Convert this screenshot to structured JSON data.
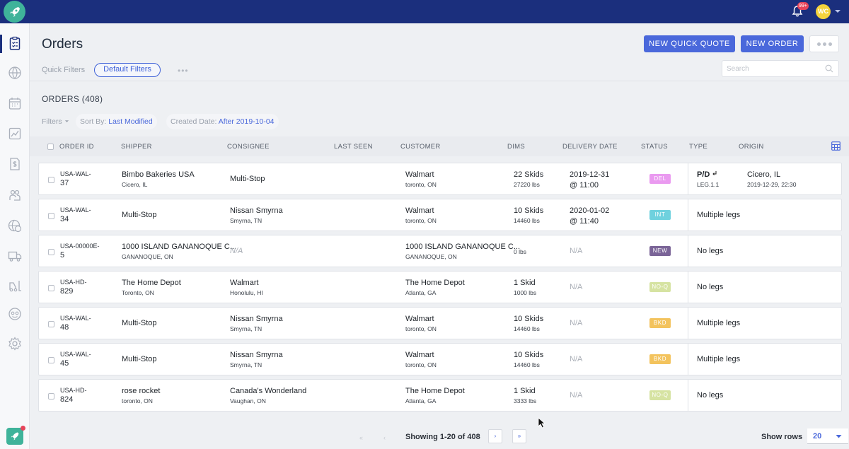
{
  "topbar": {
    "notif_count": "99+",
    "user_initials": "WC"
  },
  "header": {
    "title": "Orders",
    "quick_filters_label": "Quick Filters",
    "default_filters": "Default Filters",
    "qf_more": "•••",
    "new_quick_quote": "NEW QUICK QUOTE",
    "new_order": "NEW ORDER",
    "search_placeholder": "Search"
  },
  "orders": {
    "title": "ORDERS (408)",
    "filters_label": "Filters",
    "sort_label": "Sort By:",
    "sort_value": "Last Modified",
    "created_label": "Created Date:",
    "created_value": "After 2019-10-04"
  },
  "columns": [
    "ORDER ID",
    "SHIPPER",
    "CONSIGNEE",
    "LAST SEEN",
    "CUSTOMER",
    "DIMS",
    "DELIVERY DATE",
    "STATUS",
    "TYPE",
    "ORIGIN"
  ],
  "rows": [
    {
      "id1": "USA-WAL-",
      "id2": "37",
      "shipper": "Bimbo Bakeries USA",
      "shipper_sub": "Cicero, IL",
      "consignee": "Multi-Stop",
      "consignee_sub": "",
      "customer": "Walmart",
      "customer_sub": "toronto, ON",
      "dims": "22 Skids",
      "dims_sub": "27220 lbs",
      "delivery1": "2019-12-31",
      "delivery2": "@ 11:00",
      "status": "DEL",
      "status_color": "#ea9af0",
      "type": "P/D",
      "type_sub": "LEG.1.1",
      "origin": "Cicero, IL",
      "origin_sub": "2019-12-29, 22:30"
    },
    {
      "id1": "USA-WAL-",
      "id2": "34",
      "shipper": "Multi-Stop",
      "shipper_sub": "",
      "consignee": "Nissan Smyrna",
      "consignee_sub": "Smyrna, TN",
      "customer": "Walmart",
      "customer_sub": "toronto, ON",
      "dims": "10 Skids",
      "dims_sub": "14460 lbs",
      "delivery1": "2020-01-02",
      "delivery2": "@ 11:40",
      "status": "INT",
      "status_color": "#6fd1de",
      "type": "Multiple legs",
      "type_sub": "",
      "origin": "",
      "origin_sub": ""
    },
    {
      "id1": "USA-00000E-",
      "id2": "5",
      "shipper": "1000 ISLAND GANANOQUE C...",
      "shipper_sub": "GANANOQUE, ON",
      "consignee": "N/A",
      "consignee_sub": "",
      "customer": "1000 ISLAND GANANOQUE C...",
      "customer_sub": "GANANOQUE, ON",
      "dims": "",
      "dims_sub": "0 lbs",
      "delivery1": "N/A",
      "delivery2": "",
      "status": "NEW",
      "status_color": "#7a6497",
      "type": "No legs",
      "type_sub": "",
      "origin": "",
      "origin_sub": ""
    },
    {
      "id1": "USA-HD-",
      "id2": "829",
      "shipper": "The Home Depot",
      "shipper_sub": "Toronto, ON",
      "consignee": "Walmart",
      "consignee_sub": "Honolulu, HI",
      "customer": "The Home Depot",
      "customer_sub": "Atlanta, GA",
      "dims": "1 Skid",
      "dims_sub": "1000 lbs",
      "delivery1": "N/A",
      "delivery2": "",
      "status": "NO-Q",
      "status_color": "#d6e3a2",
      "type": "No legs",
      "type_sub": "",
      "origin": "",
      "origin_sub": ""
    },
    {
      "id1": "USA-WAL-",
      "id2": "48",
      "shipper": "Multi-Stop",
      "shipper_sub": "",
      "consignee": "Nissan Smyrna",
      "consignee_sub": "Smyrna, TN",
      "customer": "Walmart",
      "customer_sub": "toronto, ON",
      "dims": "10 Skids",
      "dims_sub": "14460 lbs",
      "delivery1": "N/A",
      "delivery2": "",
      "status": "BKD",
      "status_color": "#f3c35d",
      "type": "Multiple legs",
      "type_sub": "",
      "origin": "",
      "origin_sub": ""
    },
    {
      "id1": "USA-WAL-",
      "id2": "45",
      "shipper": "Multi-Stop",
      "shipper_sub": "",
      "consignee": "Nissan Smyrna",
      "consignee_sub": "Smyrna, TN",
      "customer": "Walmart",
      "customer_sub": "toronto, ON",
      "dims": "10 Skids",
      "dims_sub": "14460 lbs",
      "delivery1": "N/A",
      "delivery2": "",
      "status": "BKD",
      "status_color": "#f3c35d",
      "type": "Multiple legs",
      "type_sub": "",
      "origin": "",
      "origin_sub": ""
    },
    {
      "id1": "USA-HD-",
      "id2": "824",
      "shipper": "rose rocket",
      "shipper_sub": "toronto, ON",
      "consignee": "Canada's Wonderland",
      "consignee_sub": "Vaughan, ON",
      "customer": "The Home Depot",
      "customer_sub": "Atlanta, GA",
      "dims": "1 Skid",
      "dims_sub": "3333 lbs",
      "delivery1": "N/A",
      "delivery2": "",
      "status": "NO-Q",
      "status_color": "#d6e3a2",
      "type": "No legs",
      "type_sub": "",
      "origin": "",
      "origin_sub": ""
    }
  ],
  "footer": {
    "showing": "Showing 1-20 of 408",
    "first": "«",
    "prev": "‹",
    "next": "›",
    "last": "»",
    "show_rows_label": "Show rows",
    "rows_value": "20"
  },
  "colors": {
    "topbar": "#1b2f7d",
    "primary": "#4a68db",
    "logo": "#3fb39a"
  },
  "icons": {
    "sidebar": [
      "clipboard-icon",
      "globe-icon",
      "calendar-icon",
      "chart-icon",
      "invoice-icon",
      "people-icon",
      "globe-dollar-icon",
      "truck-icon",
      "forklift-icon",
      "support-icon",
      "gear-icon"
    ]
  }
}
